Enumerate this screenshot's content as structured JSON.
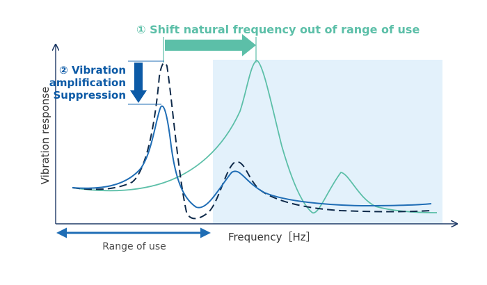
{
  "labels": {
    "shift_text": "① Shift natural frequency out of range of use",
    "suppression_line1": "② Vibration",
    "suppression_line2": "amplification",
    "suppression_line3": "Suppression",
    "y_axis": "Vibration response",
    "x_axis": "Frequency［Hz］",
    "range_of_use": "Range of use"
  },
  "colors": {
    "teal": "#5cbfa8",
    "blue": "#1f6db5",
    "navy": "#0f2a4a",
    "shade": "#e3f1fb",
    "axis": "#1f3a66",
    "suppression_text": "#0c5aa6",
    "gray_text": "#4a4a4a"
  }
}
